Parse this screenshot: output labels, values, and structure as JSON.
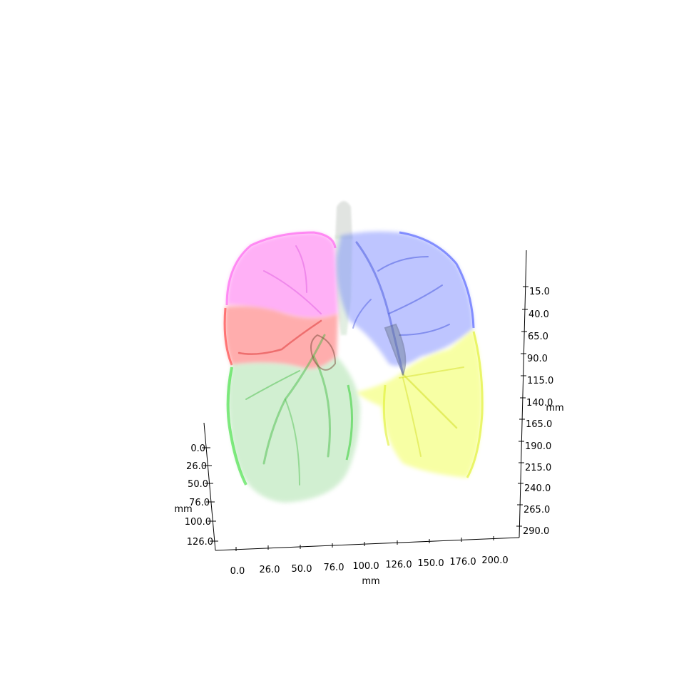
{
  "figure": {
    "x_axis": {
      "label": "mm",
      "ticks": [
        "0.0",
        "26.0",
        "50.0",
        "76.0",
        "100.0",
        "126.0",
        "150.0",
        "176.0",
        "200.0"
      ]
    },
    "y_axis": {
      "label": "mm",
      "ticks": [
        "0.0",
        "26.0",
        "50.0",
        "76.0",
        "100.0",
        "126.0"
      ]
    },
    "z_axis": {
      "label": "mm",
      "ticks": [
        "15.0",
        "40.0",
        "65.0",
        "90.0",
        "115.0",
        "140.0",
        "165.0",
        "190.0",
        "215.0",
        "240.0",
        "265.0",
        "290.0"
      ]
    },
    "segments": {
      "right_upper_lobe_color": "#ff66f0",
      "right_middle_lobe_color": "#ff3333",
      "right_lower_lobe_color": "#22dd22",
      "left_upper_lobe_color": "#5566ff",
      "left_lower_lobe_color": "#eeff33",
      "trachea_color": "#cccccc"
    }
  }
}
